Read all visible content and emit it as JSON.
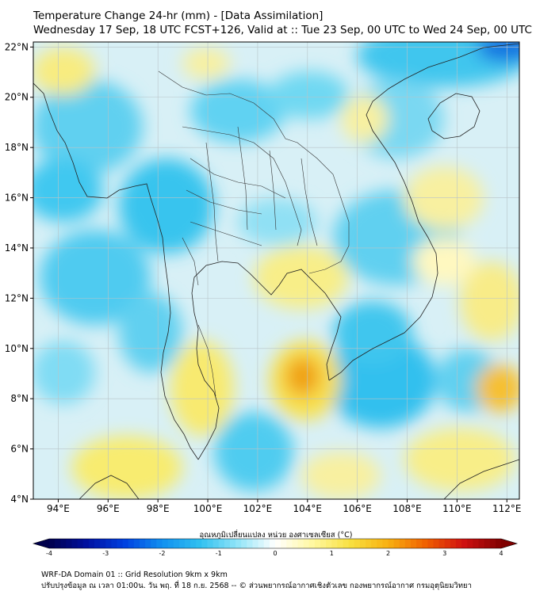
{
  "header": {
    "title": "Temperature Change 24-hr (mm) - [Data Assimilation]",
    "subtitle": "Wednesday 17 Sep, 18 UTC FCST+126, Valid at :: Tue 23 Sep, 00 UTC to Wed 24 Sep, 00 UTC"
  },
  "map": {
    "lat_labels": [
      "22°N",
      "20°N",
      "18°N",
      "16°N",
      "14°N",
      "12°N",
      "10°N",
      "8°N",
      "6°N",
      "4°N"
    ],
    "lon_labels": [
      "94°E",
      "96°E",
      "98°E",
      "100°E",
      "102°E",
      "104°E",
      "106°E",
      "108°E",
      "110°E",
      "112°E"
    ],
    "extent": {
      "lon_min": 93.0,
      "lon_max": 112.5,
      "lat_min": 4.0,
      "lat_max": 22.2
    },
    "colors": {
      "cool": "#33ccee",
      "neutral": "#eef6f8",
      "warm": "#f8e860",
      "hot": "#f0a010"
    }
  },
  "colorbar": {
    "title": "อุณหภูมิเปลี่ยนแปลง หน่วย องศาเซลเซียส (°C)",
    "ticks": [
      "-4",
      "-3",
      "-2",
      "-1",
      "0",
      "1",
      "2",
      "3",
      "4"
    ],
    "colors": [
      "#00004c",
      "#0010a0",
      "#0040e0",
      "#1090f0",
      "#30c0f0",
      "#90e4f8",
      "#ffffff",
      "#fff8a0",
      "#f8e040",
      "#f8b010",
      "#f06000",
      "#d01010",
      "#800000"
    ]
  },
  "footer": {
    "line1": "WRF-DA Domain 01 :: Grid Resolution 9km x 9km",
    "line2": "ปรับปรุงข้อมูล ณ เวลา 01:00น. วัน พฤ. ที่ 18 ก.ย. 2568 -- © ส่วนพยากรณ์อากาศเชิงตัวเลข กองพยากรณ์อากาศ กรมอุตุนิยมวิทยา"
  }
}
